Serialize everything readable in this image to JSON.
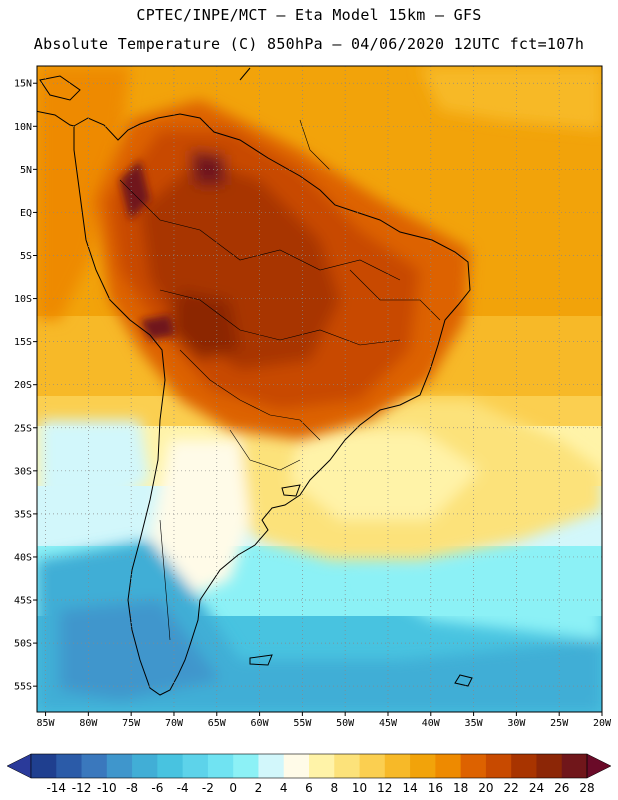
{
  "header": {
    "line1": "CPTEC/INPE/MCT –  Eta Model 15km – GFS",
    "line2": "Absolute Temperature (C) 850hPa – 04/06/2020 12UTC fct=107h"
  },
  "map": {
    "lat_range": [
      -58,
      17
    ],
    "lon_range": [
      -86,
      -20
    ],
    "lat_ticks": [
      "15N",
      "10N",
      "5N",
      "EQ",
      "5S",
      "10S",
      "15S",
      "20S",
      "25S",
      "30S",
      "35S",
      "40S",
      "45S",
      "50S",
      "55S"
    ],
    "lon_ticks": [
      "85W",
      "80W",
      "75W",
      "70W",
      "65W",
      "60W",
      "55W",
      "50W",
      "45W",
      "40W",
      "35W",
      "30W",
      "25W",
      "20W"
    ],
    "lat_values": [
      15,
      10,
      5,
      0,
      -5,
      -10,
      -15,
      -20,
      -25,
      -30,
      -35,
      -40,
      -45,
      -50,
      -55
    ],
    "lon_values": [
      -85,
      -80,
      -75,
      -70,
      -65,
      -60,
      -55,
      -50,
      -45,
      -40,
      -35,
      -30,
      -25,
      -20
    ]
  },
  "colorbar": {
    "labels": [
      "-14",
      "-12",
      "-10",
      "-8",
      "-6",
      "-4",
      "-2",
      "0",
      "2",
      "4",
      "6",
      "8",
      "10",
      "12",
      "14",
      "16",
      "18",
      "20",
      "22",
      "24",
      "26",
      "28"
    ],
    "colors": [
      "#1f3f8f",
      "#2b5ba8",
      "#3a78bd",
      "#3f96cc",
      "#41aed6",
      "#48c3e0",
      "#5dd3ea",
      "#70e3f2",
      "#8cf1f6",
      "#d2f7fb",
      "#fffbe8",
      "#fff3a8",
      "#fce27a",
      "#fbcf50",
      "#f7b928",
      "#f2a30a",
      "#ee8a00",
      "#dd6200",
      "#c84a00",
      "#a83400",
      "#8c2606",
      "#70161a"
    ],
    "under_color": "#2a3a9a",
    "over_color": "#6a0a28"
  },
  "colors": {
    "ocean_warm": "#f2a30a",
    "land_hot": "#a83400",
    "cold_south": "#41aed6"
  }
}
